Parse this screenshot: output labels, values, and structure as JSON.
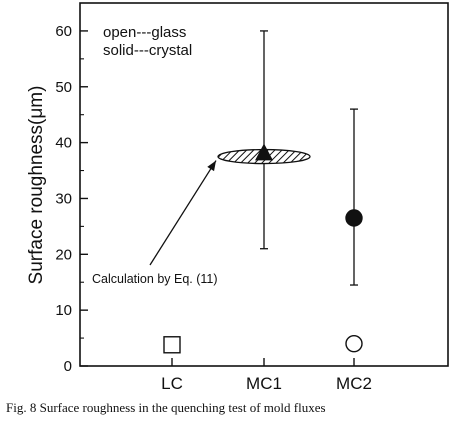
{
  "chart_data": {
    "type": "scatter",
    "ylabel": "Surface roughness(μm)",
    "xlabel": "",
    "categories": [
      "LC",
      "MC1",
      "MC2"
    ],
    "ylim": [
      0,
      65
    ],
    "yticks": [
      0,
      10,
      20,
      30,
      40,
      50,
      60
    ],
    "legend": [
      "open---glass",
      "solid---crystal"
    ],
    "legend_position": "top-left",
    "grid": false,
    "points": [
      {
        "category": "LC",
        "value": 3.8,
        "marker": "square",
        "filled": false
      },
      {
        "category": "MC1",
        "value": 38.0,
        "marker": "triangle",
        "filled": true,
        "error_low": 21.0,
        "error_high": 60.0
      },
      {
        "category": "MC2",
        "value": 26.5,
        "marker": "circle",
        "filled": true,
        "error_low": 14.5,
        "error_high": 46.0
      },
      {
        "category": "MC2",
        "value": 4.0,
        "marker": "circle",
        "filled": false
      }
    ],
    "annotation": {
      "text": "Calculation by Eq. (11)",
      "target_category": "MC1",
      "target_value": 37.5
    }
  },
  "caption": "Fig. 8    Surface roughness in the quenching test of mold fluxes"
}
